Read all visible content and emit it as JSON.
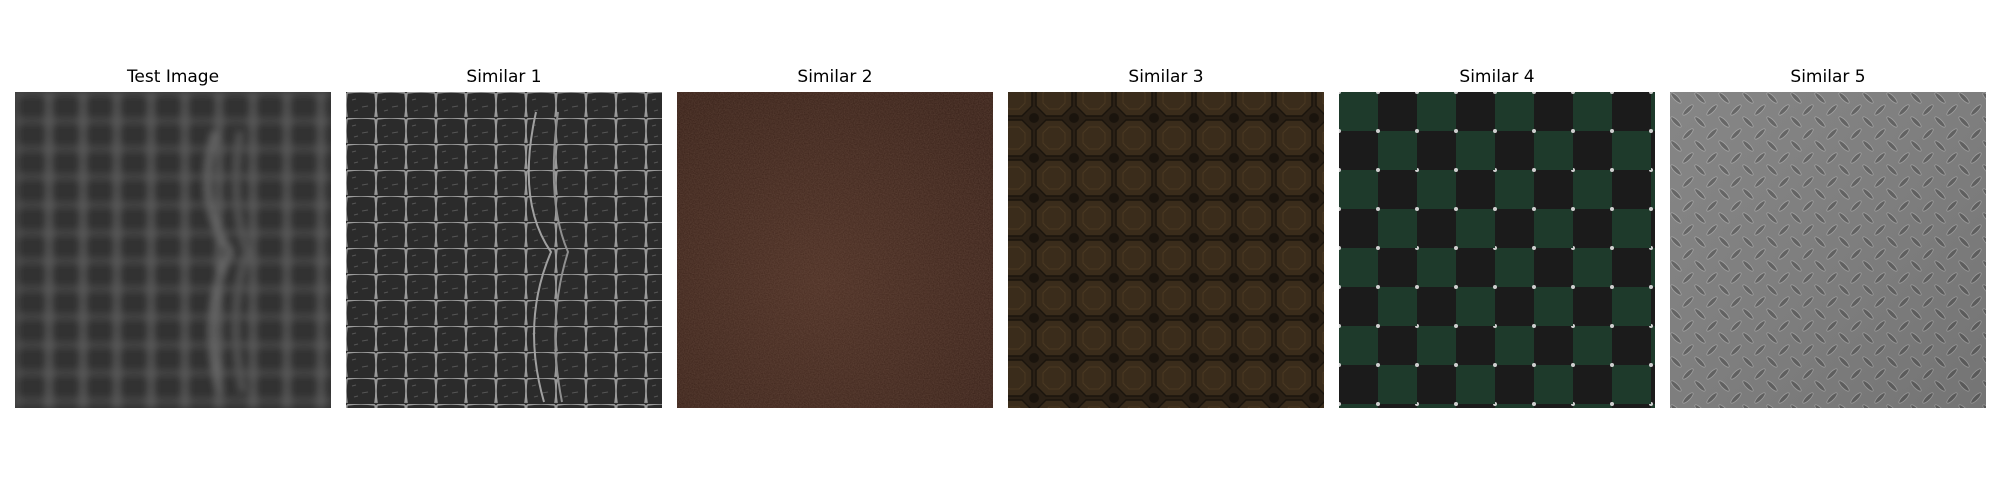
{
  "panels": [
    {
      "title": "Test Image",
      "texture": "blurred-crocodile-leather",
      "base_color": "#333333"
    },
    {
      "title": "Similar 1",
      "texture": "crocodile-leather",
      "base_color": "#2e2e2e"
    },
    {
      "title": "Similar 2",
      "texture": "brown-leather",
      "base_color": "#3a2219"
    },
    {
      "title": "Similar 3",
      "texture": "brown-octagon-tile",
      "base_color": "#2c2216"
    },
    {
      "title": "Similar 4",
      "texture": "green-black-checker-studded",
      "base_color": "#1f3a2c"
    },
    {
      "title": "Similar 5",
      "texture": "diamond-plate-metal",
      "base_color": "#808080"
    }
  ]
}
